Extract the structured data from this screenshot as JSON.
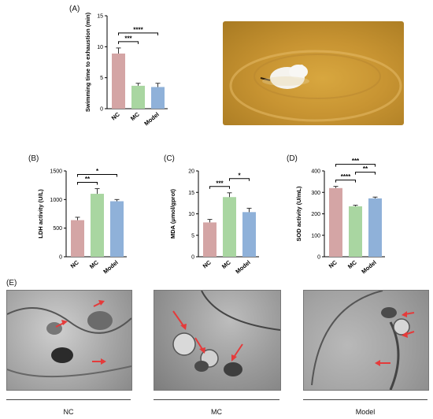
{
  "panels": {
    "a": "(A)",
    "b": "(B)",
    "c": "(C)",
    "d": "(D)",
    "e": "(E)"
  },
  "colors": {
    "NC": "#d4a5a5",
    "MC": "#a9d6a1",
    "Model": "#8fb1d9",
    "error": "#333333",
    "arrow": "#e43b3b"
  },
  "chart_data": [
    {
      "id": "A",
      "type": "bar",
      "categories": [
        "NC",
        "MC",
        "Model"
      ],
      "values": [
        8.9,
        3.7,
        3.5
      ],
      "errors": [
        0.9,
        0.4,
        0.6
      ],
      "ylabel": "Swimming time to exhaustion (min)",
      "ylim": [
        0,
        15
      ],
      "yticks": [
        0,
        5,
        10,
        15
      ],
      "significance": [
        {
          "from": "NC",
          "to": "MC",
          "label": "***"
        },
        {
          "from": "NC",
          "to": "Model",
          "label": "****"
        }
      ]
    },
    {
      "id": "B",
      "type": "bar",
      "categories": [
        "NC",
        "MC",
        "Model"
      ],
      "values": [
        640,
        1100,
        970
      ],
      "errors": [
        50,
        90,
        30
      ],
      "ylabel": "LDH activity (U/L)",
      "ylim": [
        0,
        1500
      ],
      "yticks": [
        0,
        500,
        1000,
        1500
      ],
      "significance": [
        {
          "from": "NC",
          "to": "MC",
          "label": "**"
        },
        {
          "from": "NC",
          "to": "Model",
          "label": "*"
        }
      ]
    },
    {
      "id": "C",
      "type": "bar",
      "categories": [
        "NC",
        "MC",
        "Model"
      ],
      "values": [
        8.0,
        13.9,
        10.4
      ],
      "errors": [
        0.7,
        1.0,
        0.9
      ],
      "ylabel": "MDA (μmol/gprot)",
      "ylim": [
        0,
        20
      ],
      "yticks": [
        0,
        5,
        10,
        15,
        20
      ],
      "significance": [
        {
          "from": "NC",
          "to": "MC",
          "label": "***"
        },
        {
          "from": "MC",
          "to": "Model",
          "label": "*"
        }
      ]
    },
    {
      "id": "D",
      "type": "bar",
      "categories": [
        "NC",
        "MC",
        "Model"
      ],
      "values": [
        320,
        235,
        272
      ],
      "errors": [
        8,
        5,
        6
      ],
      "ylabel": "SOD activity (U/mL)",
      "ylim": [
        0,
        400
      ],
      "yticks": [
        0,
        100,
        200,
        300,
        400
      ],
      "significance": [
        {
          "from": "NC",
          "to": "MC",
          "label": "****"
        },
        {
          "from": "MC",
          "to": "Model",
          "label": "**"
        },
        {
          "from": "NC",
          "to": "Model",
          "label": "***"
        }
      ]
    }
  ],
  "micrographs": [
    {
      "caption": "NC"
    },
    {
      "caption": "MC"
    },
    {
      "caption": "Model"
    }
  ]
}
